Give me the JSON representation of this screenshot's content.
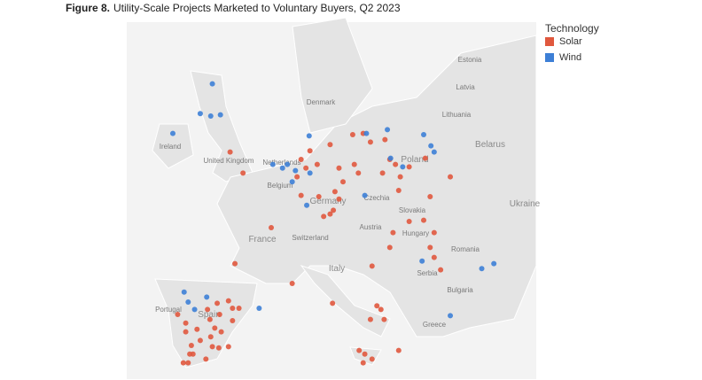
{
  "chart_data": {
    "type": "map",
    "title_label": "Figure 8.",
    "title": "Utility-Scale Projects Marketed to Voluntary Buyers, Q2 2023",
    "legend_title": "Technology",
    "labels": [
      "Ireland",
      "United Kingdom",
      "France",
      "Spain",
      "Portugal",
      "Italy",
      "Germany",
      "Poland",
      "Denmark",
      "Estonia",
      "Latvia",
      "Lithuania",
      "Belarus",
      "Ukraine",
      "Czechia",
      "Slovakia",
      "Austria",
      "Hungary",
      "Switzerland",
      "Romania",
      "Serbia",
      "Bulgaria",
      "Greece",
      "Belgium",
      "Netherlands"
    ],
    "series": [
      {
        "name": "Solar",
        "color": "#e0583e",
        "lon": [
          -1.0,
          0.6,
          8.9,
          11.4,
          14.2,
          15.5,
          7.8,
          8.4,
          7.3,
          9.8,
          12.5,
          13.0,
          14.4,
          14.9,
          12.0,
          12.5,
          7.8,
          10.0,
          11.4,
          11.8,
          10.6,
          4.1,
          -0.4,
          6.7,
          16.4,
          18.2,
          18.8,
          19.5,
          17.9,
          20.1,
          21.2,
          23.2,
          19.9,
          23.8,
          26.3,
          21.2,
          23.0,
          24.3,
          23.8,
          24.3,
          25.1,
          19.2,
          18.8,
          16.6,
          16.4,
          17.7,
          18.1,
          17.2,
          11.7,
          19.9,
          15.7,
          16.6,
          15.5,
          15.0,
          -6.5,
          -5.1,
          -2.6,
          -1.2,
          -0.7,
          0.1,
          -3.5,
          -2.9,
          -3.4,
          -2.1,
          -5.8,
          -6.0,
          -6.8,
          -6.2,
          -5.6,
          -4.0,
          -2.4,
          -1.2,
          -3.8,
          -2.3,
          -0.7,
          -3.2,
          -4.7,
          -6.5,
          -7.5
        ],
        "lat": [
          53.5,
          51.8,
          53.6,
          54.1,
          54.9,
          55.0,
          52.9,
          52.2,
          51.5,
          52.5,
          52.2,
          51.1,
          52.5,
          51.8,
          50.3,
          49.7,
          50.0,
          49.9,
          48.5,
          48.8,
          48.3,
          47.4,
          44.5,
          42.9,
          54.3,
          54.5,
          52.9,
          52.5,
          51.8,
          51.5,
          52.3,
          53.0,
          50.4,
          49.9,
          51.5,
          47.9,
          48.0,
          47.0,
          45.8,
          45.0,
          44.0,
          47.0,
          45.8,
          44.3,
          40.0,
          40.8,
          40.0,
          41.1,
          41.3,
          37.5,
          37.2,
          36.8,
          36.5,
          37.5,
          39.0,
          39.2,
          41.3,
          41.5,
          40.9,
          40.9,
          40.0,
          39.3,
          38.6,
          39.0,
          37.9,
          37.2,
          36.5,
          36.5,
          37.2,
          36.8,
          37.7,
          37.8,
          40.8,
          40.4,
          39.9,
          37.8,
          38.3,
          39.7,
          40.4
        ]
      },
      {
        "name": "Wind",
        "color": "#3d7fd6",
        "lon": [
          -3.2,
          -4.7,
          -3.4,
          -2.2,
          -8.1,
          8.8,
          6.1,
          4.3,
          7.1,
          8.9,
          6.7,
          8.5,
          15.7,
          18.5,
          23.0,
          23.9,
          24.3,
          20.4,
          18.9,
          15.9,
          22.8,
          30.2,
          31.7,
          26.3,
          -6.7,
          -6.2,
          -5.4,
          -3.9,
          2.6,
          5.5
        ],
        "lat": [
          59.0,
          56.6,
          56.4,
          56.5,
          55.0,
          54.8,
          52.5,
          52.5,
          52.0,
          51.8,
          51.1,
          49.2,
          50.0,
          55.3,
          54.9,
          54.0,
          53.5,
          52.3,
          53.0,
          55.0,
          44.7,
          44.1,
          44.5,
          40.3,
          42.2,
          41.4,
          40.8,
          41.8,
          40.9,
          52.2
        ]
      }
    ]
  }
}
